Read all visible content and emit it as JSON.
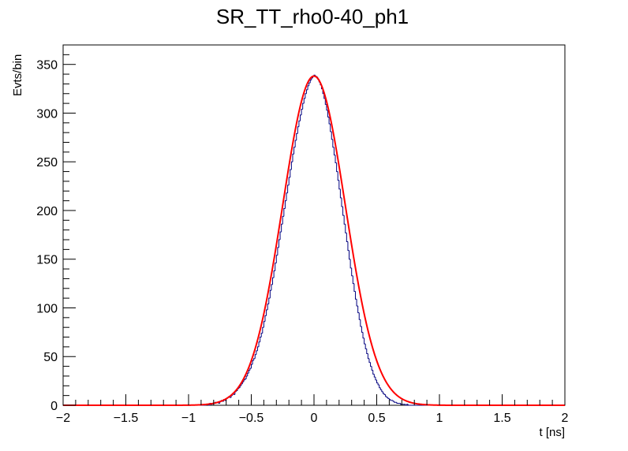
{
  "chart_data": {
    "type": "histogram",
    "title": "SR_TT_rho0-40_ph1",
    "xlabel": "t [ns]",
    "ylabel": "Evts/bin",
    "xlim": [
      -2,
      2
    ],
    "ylim": [
      0,
      370
    ],
    "xticks": [
      -2,
      -1.5,
      -1,
      -0.5,
      0,
      0.5,
      1,
      1.5,
      2
    ],
    "xtick_labels": [
      "−2",
      "−1.5",
      "−1",
      "−0.5",
      "0",
      "0.5",
      "1",
      "1.5",
      "2"
    ],
    "yticks": [
      0,
      50,
      100,
      150,
      200,
      250,
      300,
      350
    ],
    "ytick_labels": [
      "0",
      "50",
      "100",
      "150",
      "200",
      "250",
      "300",
      "350"
    ],
    "grid": false,
    "histogram": {
      "color": "#00007f",
      "bin_width": 0.01,
      "bin_start": -1.0,
      "counts": [
        0,
        0,
        0,
        0,
        0,
        0,
        0,
        0,
        0,
        0,
        0,
        0,
        0,
        0,
        1,
        1,
        0,
        2,
        1,
        2,
        2,
        3,
        3,
        3,
        2,
        4,
        5,
        4,
        6,
        5,
        7,
        8,
        9,
        8,
        10,
        12,
        11,
        14,
        15,
        17,
        18,
        20,
        22,
        24,
        26,
        27,
        30,
        33,
        36,
        38,
        42,
        46,
        48,
        52,
        56,
        60,
        65,
        70,
        74,
        80,
        86,
        92,
        98,
        104,
        110,
        118,
        124,
        131,
        138,
        146,
        154,
        162,
        170,
        178,
        186,
        194,
        202,
        210,
        218,
        226,
        234,
        242,
        250,
        258,
        265,
        272,
        279,
        286,
        292,
        298,
        304,
        310,
        315,
        320,
        324,
        328,
        331,
        334,
        336,
        338,
        339,
        338,
        337,
        335,
        332,
        329,
        325,
        320,
        315,
        309,
        303,
        296,
        289,
        281,
        273,
        265,
        257,
        249,
        240,
        231,
        222,
        213,
        204,
        195,
        186,
        177,
        168,
        159,
        150,
        141,
        133,
        125,
        117,
        109,
        102,
        95,
        88,
        81,
        75,
        69,
        63,
        58,
        53,
        48,
        44,
        40,
        36,
        32,
        29,
        26,
        23,
        21,
        18,
        16,
        14,
        12,
        11,
        9,
        8,
        7,
        6,
        5,
        5,
        4,
        3,
        3,
        2,
        2,
        2,
        1,
        1,
        1,
        1,
        0,
        1,
        0,
        0,
        0,
        0,
        0,
        0,
        0,
        0,
        0,
        0,
        0,
        0,
        0,
        0,
        0,
        0,
        0,
        0,
        0,
        0,
        0,
        0,
        0,
        0,
        0,
        0
      ]
    },
    "fit": {
      "type": "gaussian",
      "color": "#ff0000",
      "amplitude": 338,
      "mean": 0.0,
      "sigma": 0.25
    }
  }
}
